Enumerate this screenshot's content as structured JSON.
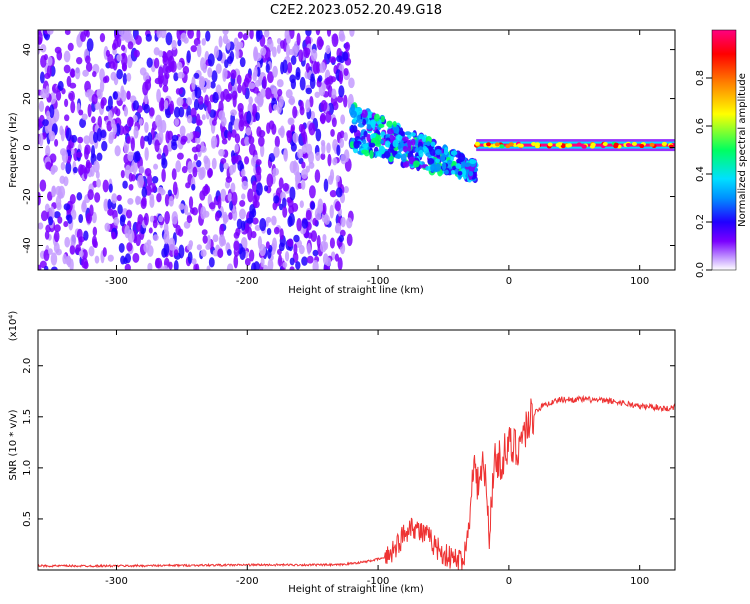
{
  "title": "C2E2.2023.052.20.49.G18",
  "chart_data": [
    {
      "type": "heatmap",
      "xlabel": "Height of straight line (km)",
      "ylabel": "Frequency (Hz)",
      "xlim": [
        -360,
        127
      ],
      "ylim": [
        -50,
        48
      ],
      "xticks": [
        -300,
        -200,
        -100,
        0,
        100
      ],
      "yticks": [
        -40,
        -20,
        0,
        20,
        40
      ],
      "grid": false,
      "colorbar": {
        "label": "Normalized spectral amplitude",
        "range": [
          0,
          1
        ],
        "ticks": [
          0.0,
          0.2,
          0.4,
          0.6,
          0.8
        ],
        "colormap": [
          "#ffffff",
          "#c49bff",
          "#7a00ff",
          "#2000ff",
          "#0090ff",
          "#00e0ff",
          "#00ff60",
          "#ffff00",
          "#ff8000",
          "#ff0000",
          "#ff0080"
        ]
      },
      "regions": [
        {
          "x_range": [
            -360,
            -120
          ],
          "freq_range": [
            -50,
            48
          ],
          "amplitude_range": [
            0.05,
            0.3
          ],
          "description_color": "#7a00ff"
        },
        {
          "x_range": [
            -120,
            -25
          ],
          "freq_center_start": 8,
          "freq_center_end": -10,
          "amplitude_range": [
            0.2,
            0.6
          ]
        },
        {
          "x_range": [
            -25,
            127
          ],
          "freq_center": 1,
          "amplitude_range": [
            0.6,
            1.0
          ]
        }
      ]
    },
    {
      "type": "line",
      "xlabel": "Height of straight line (km)",
      "ylabel": "SNR (10 * v/v)",
      "yscale_label": "(x10⁴)",
      "xlim": [
        -360,
        127
      ],
      "ylim": [
        0,
        2.35
      ],
      "xticks": [
        -300,
        -200,
        -100,
        0,
        100
      ],
      "yticks": [
        0.5,
        1.0,
        1.5,
        2.0
      ],
      "series": [
        {
          "color": "#ee3333",
          "x": [
            -360,
            -300,
            -200,
            -130,
            -110,
            -95,
            -85,
            -80,
            -75,
            -70,
            -65,
            -60,
            -55,
            -50,
            -45,
            -40,
            -35,
            -30,
            -28,
            -25,
            -22,
            -20,
            -18,
            -15,
            -12,
            -10,
            -5,
            0,
            5,
            10,
            15,
            20,
            25,
            30,
            40,
            50,
            60,
            70,
            80,
            90,
            100,
            110,
            120,
            127
          ],
          "y": [
            0.04,
            0.04,
            0.05,
            0.05,
            0.08,
            0.12,
            0.25,
            0.35,
            0.45,
            0.4,
            0.35,
            0.3,
            0.22,
            0.16,
            0.12,
            0.1,
            0.1,
            0.45,
            1.1,
            0.9,
            0.85,
            1.0,
            0.9,
            0.3,
            1.0,
            1.05,
            1.1,
            1.2,
            1.2,
            1.3,
            1.45,
            1.55,
            1.6,
            1.63,
            1.67,
            1.67,
            1.67,
            1.66,
            1.65,
            1.63,
            1.6,
            1.6,
            1.58,
            1.6
          ]
        }
      ]
    }
  ]
}
